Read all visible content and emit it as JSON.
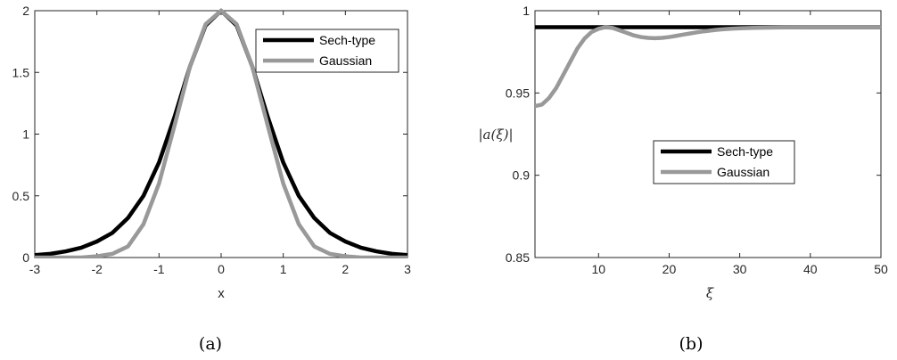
{
  "chart_data": [
    {
      "id": "a",
      "type": "line",
      "caption": "(a)",
      "xlabel": "x",
      "ylabel": "",
      "xlim": [
        -3,
        3
      ],
      "ylim": [
        0,
        2
      ],
      "xticks": [
        -3,
        -2,
        -1,
        0,
        1,
        2,
        3
      ],
      "yticks": [
        0,
        0.5,
        1,
        1.5,
        2
      ],
      "xtick_labels": [
        "-3",
        "-2",
        "-1",
        "0",
        "1",
        "2",
        "3"
      ],
      "ytick_labels": [
        "0",
        "0.5",
        "1",
        "1.5",
        "2"
      ],
      "grid": false,
      "legend_position": "top-right",
      "series": [
        {
          "name": "Sech-type",
          "color": "#000000",
          "x": [
            -3,
            -2.75,
            -2.5,
            -2.25,
            -2,
            -1.75,
            -1.5,
            -1.25,
            -1,
            -0.75,
            -0.5,
            -0.25,
            0,
            0.25,
            0.5,
            0.75,
            1,
            1.25,
            1.5,
            1.75,
            2,
            2.25,
            2.5,
            2.75,
            3
          ],
          "y": [
            0.02,
            0.03,
            0.05,
            0.08,
            0.13,
            0.2,
            0.32,
            0.5,
            0.77,
            1.14,
            1.55,
            1.88,
            2,
            1.88,
            1.55,
            1.14,
            0.77,
            0.5,
            0.32,
            0.2,
            0.13,
            0.08,
            0.05,
            0.03,
            0.02
          ]
        },
        {
          "name": "Gaussian",
          "color": "#999999",
          "x": [
            -3,
            -2.75,
            -2.5,
            -2.25,
            -2,
            -1.75,
            -1.5,
            -1.25,
            -1,
            -0.75,
            -0.5,
            -0.25,
            0,
            0.25,
            0.5,
            0.75,
            1,
            1.25,
            1.5,
            1.75,
            2,
            2.25,
            2.5,
            2.75,
            3
          ],
          "y": [
            0,
            0,
            0,
            0,
            0.01,
            0.03,
            0.09,
            0.27,
            0.6,
            1.07,
            1.55,
            1.89,
            2,
            1.89,
            1.55,
            1.07,
            0.6,
            0.27,
            0.09,
            0.03,
            0.01,
            0,
            0,
            0,
            0
          ]
        }
      ]
    },
    {
      "id": "b",
      "type": "line",
      "caption": "(b)",
      "xlabel": "ξ",
      "ylabel": "|a(ξ)|",
      "xlim": [
        1,
        50
      ],
      "ylim": [
        0.85,
        1
      ],
      "xticks": [
        10,
        20,
        30,
        40,
        50
      ],
      "yticks": [
        0.85,
        0.9,
        0.95,
        1
      ],
      "xtick_labels": [
        "10",
        "20",
        "30",
        "40",
        "50"
      ],
      "ytick_labels": [
        "0.85",
        "0.9",
        "0.95",
        "1"
      ],
      "grid": false,
      "legend_position": "center",
      "series": [
        {
          "name": "Sech-type",
          "color": "#000000",
          "x": [
            1,
            50
          ],
          "y": [
            0.99,
            0.99
          ]
        },
        {
          "name": "Gaussian",
          "color": "#999999",
          "x": [
            1,
            2,
            3,
            4,
            5,
            6,
            7,
            8,
            9,
            10,
            11,
            12,
            13,
            14,
            15,
            16,
            17,
            18,
            19,
            20,
            21,
            22,
            23,
            24,
            25,
            26,
            27,
            28,
            29,
            30,
            32,
            35,
            40,
            45,
            50
          ],
          "y": [
            0.942,
            0.943,
            0.947,
            0.953,
            0.961,
            0.969,
            0.977,
            0.983,
            0.987,
            0.989,
            0.99,
            0.9895,
            0.988,
            0.9865,
            0.985,
            0.984,
            0.9835,
            0.9833,
            0.9835,
            0.984,
            0.9847,
            0.9855,
            0.9862,
            0.9869,
            0.9875,
            0.988,
            0.9885,
            0.9888,
            0.9891,
            0.9893,
            0.9896,
            0.9898,
            0.99,
            0.99,
            0.99
          ]
        }
      ]
    }
  ]
}
